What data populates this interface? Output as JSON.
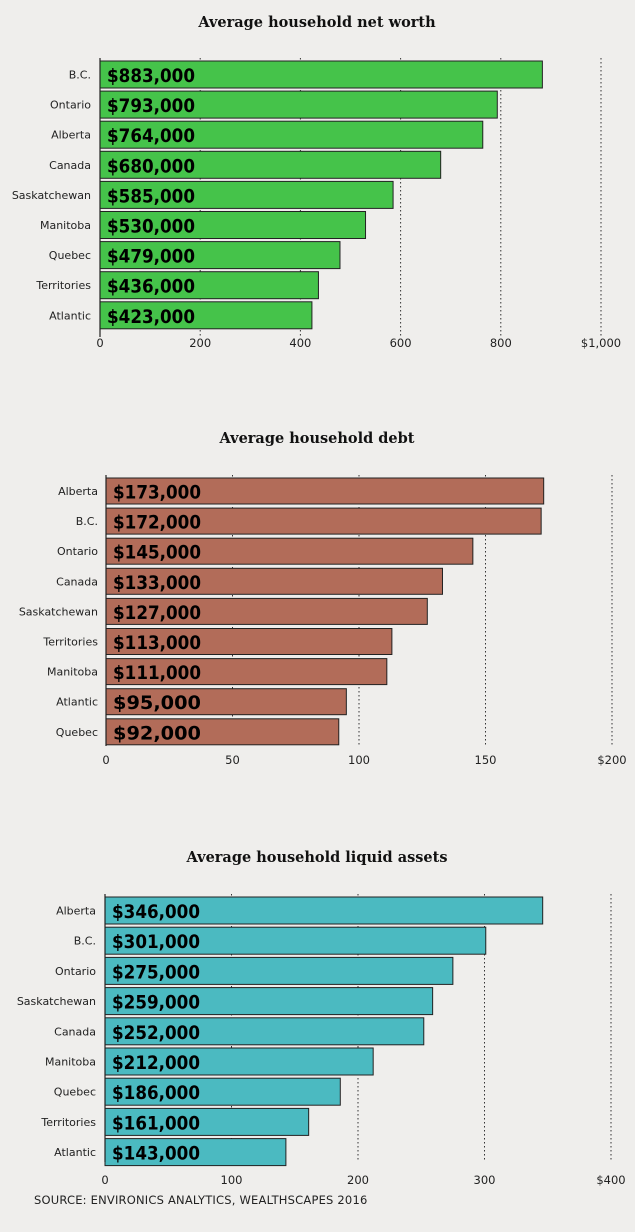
{
  "chart_data": [
    {
      "type": "bar",
      "orientation": "horizontal",
      "title": "Average household net worth",
      "categories": [
        "B.C.",
        "Ontario",
        "Alberta",
        "Canada",
        "Saskatchewan",
        "Manitoba",
        "Quebec",
        "Territories",
        "Atlantic"
      ],
      "values": [
        883000,
        793000,
        764000,
        680000,
        585000,
        530000,
        479000,
        436000,
        423000
      ],
      "value_labels": [
        "$883,000",
        "$793,000",
        "$764,000",
        "$680,000",
        "$585,000",
        "$530,000",
        "$479,000",
        "$436,000",
        "$423,000"
      ],
      "tick_labels": [
        "0",
        "200",
        "400",
        "600",
        "800",
        "$1,000"
      ],
      "xlim": [
        0,
        1000
      ],
      "grid": "dotted vertical",
      "color": "#45c34a"
    },
    {
      "type": "bar",
      "orientation": "horizontal",
      "title": "Average household debt",
      "categories": [
        "Alberta",
        "B.C.",
        "Ontario",
        "Canada",
        "Saskatchewan",
        "Territories",
        "Manitoba",
        "Atlantic",
        "Quebec"
      ],
      "values": [
        173000,
        172000,
        145000,
        133000,
        127000,
        113000,
        111000,
        95000,
        92000
      ],
      "value_labels": [
        "$173,000",
        "$172,000",
        "$145,000",
        "$133,000",
        "$127,000",
        "$113,000",
        "$111,000",
        "$95,000",
        "$92,000"
      ],
      "tick_labels": [
        "0",
        "50",
        "100",
        "150",
        "$200"
      ],
      "xlim": [
        0,
        200
      ],
      "grid": "dotted vertical",
      "color": "#b26c59"
    },
    {
      "type": "bar",
      "orientation": "horizontal",
      "title": "Average household liquid assets",
      "categories": [
        "Alberta",
        "B.C.",
        "Ontario",
        "Saskatchewan",
        "Canada",
        "Manitoba",
        "Quebec",
        "Territories",
        "Atlantic"
      ],
      "values": [
        346000,
        301000,
        275000,
        259000,
        252000,
        212000,
        186000,
        161000,
        143000
      ],
      "value_labels": [
        "$346,000",
        "$301,000",
        "$275,000",
        "$259,000",
        "$252,000",
        "$212,000",
        "$186,000",
        "$161,000",
        "$143,000"
      ],
      "tick_labels": [
        "0",
        "100",
        "200",
        "300",
        "$400"
      ],
      "xlim": [
        0,
        400
      ],
      "grid": "dotted vertical",
      "color": "#4bbac1"
    }
  ],
  "source": "SOURCE: ENVIRONICS ANALYTICS, WEALTHSCAPES 2016"
}
